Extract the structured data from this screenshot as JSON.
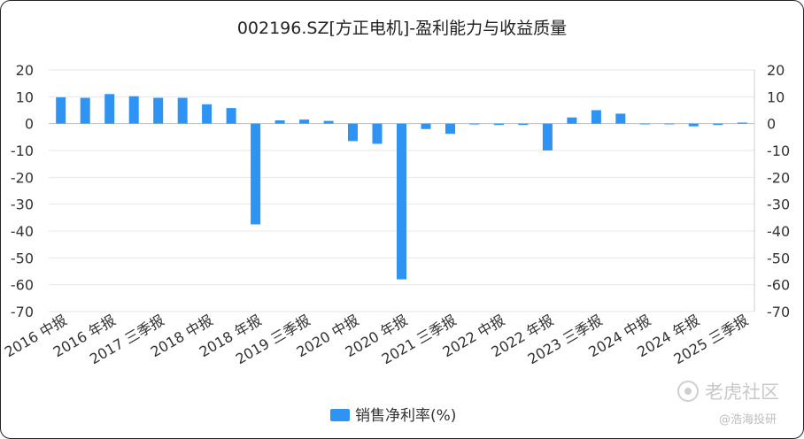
{
  "chart_data": {
    "type": "bar",
    "title": "002196.SZ[方正电机]-盈利能力与收益质量",
    "categories": [
      "2016 中报",
      "",
      "2016 年报",
      "",
      "2017 三季报",
      "",
      "2018 中报",
      "",
      "2018 年报",
      "",
      "2019 三季报",
      "",
      "2020 中报",
      "",
      "2020 年报",
      "",
      "2021 三季报",
      "",
      "2022 中报",
      "",
      "2022 年报",
      "",
      "2023 三季报",
      "",
      "2024 中报",
      "",
      "2024 年报",
      "",
      "2025 三季报"
    ],
    "series": [
      {
        "name": "销售净利率(%)",
        "color": "#2e93f2",
        "values": [
          9.8,
          9.6,
          11.0,
          10.2,
          9.6,
          9.6,
          7.2,
          5.8,
          -37.5,
          1.2,
          1.5,
          1.0,
          -6.5,
          -7.5,
          -58.0,
          -2.0,
          -3.8,
          -0.3,
          -0.5,
          -0.5,
          -10.0,
          2.3,
          5.0,
          3.7,
          0.0,
          0.0,
          -1.0,
          -0.5,
          0.4
        ]
      }
    ],
    "ylim": [
      -70,
      20
    ],
    "yticks": [
      20,
      10,
      0,
      -10,
      -20,
      -30,
      -40,
      -50,
      -60,
      -70
    ],
    "dual_axis": true,
    "grid": true,
    "legend": "bottom-center"
  },
  "watermark": {
    "brand": "老虎社区",
    "sub": "@浩海投研"
  }
}
